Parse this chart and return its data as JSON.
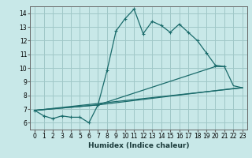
{
  "title": "",
  "xlabel": "Humidex (Indice chaleur)",
  "xlim": [
    -0.5,
    23.5
  ],
  "ylim": [
    5.5,
    14.5
  ],
  "xticks": [
    0,
    1,
    2,
    3,
    4,
    5,
    6,
    7,
    8,
    9,
    10,
    11,
    12,
    13,
    14,
    15,
    16,
    17,
    18,
    19,
    20,
    21,
    22,
    23
  ],
  "yticks": [
    6,
    7,
    8,
    9,
    10,
    11,
    12,
    13,
    14
  ],
  "bg_color": "#c8e8e8",
  "grid_color": "#a0c8c8",
  "line_color": "#1a6b6b",
  "curve1_x": [
    0,
    1,
    2,
    3,
    4,
    5,
    6,
    7,
    8,
    9,
    10,
    11,
    12,
    13,
    14,
    15,
    16,
    17,
    18,
    19,
    20,
    21
  ],
  "curve1_y": [
    6.9,
    6.5,
    6.3,
    6.5,
    6.4,
    6.4,
    6.0,
    7.3,
    9.8,
    12.7,
    13.6,
    14.3,
    12.5,
    13.4,
    13.1,
    12.6,
    13.2,
    12.6,
    12.0,
    11.1,
    10.2,
    10.1
  ],
  "curve2_x": [
    0,
    7,
    20,
    21,
    22,
    23
  ],
  "curve2_y": [
    6.9,
    7.3,
    10.1,
    10.1,
    8.7,
    8.55
  ],
  "curve3_x": [
    0,
    7,
    22,
    23
  ],
  "curve3_y": [
    6.9,
    7.3,
    8.5,
    8.55
  ],
  "curve4_x": [
    0,
    23
  ],
  "curve4_y": [
    6.9,
    8.55
  ],
  "tick_fontsize": 5.5,
  "xlabel_fontsize": 6.5,
  "lw": 0.9,
  "marker_size": 3
}
